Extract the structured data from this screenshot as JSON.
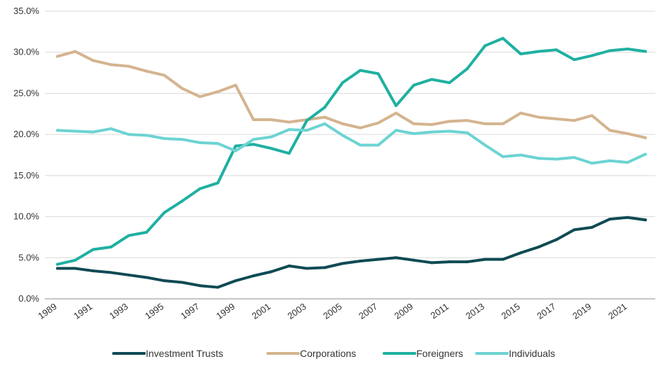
{
  "chart_data": {
    "type": "line",
    "title": "",
    "xlabel": "",
    "ylabel": "",
    "ylim": [
      0,
      35
    ],
    "y_ticks": [
      "0.0%",
      "5.0%",
      "10.0%",
      "15.0%",
      "20.0%",
      "25.0%",
      "30.0%",
      "35.0%"
    ],
    "x": [
      1989,
      1990,
      1991,
      1992,
      1993,
      1994,
      1995,
      1996,
      1997,
      1998,
      1999,
      2000,
      2001,
      2002,
      2003,
      2004,
      2005,
      2006,
      2007,
      2008,
      2009,
      2010,
      2011,
      2012,
      2013,
      2014,
      2015,
      2016,
      2017,
      2018,
      2019,
      2020,
      2021,
      2022
    ],
    "x_ticks": [
      "1989",
      "1991",
      "1993",
      "1995",
      "1997",
      "1999",
      "2001",
      "2003",
      "2005",
      "2007",
      "2009",
      "2011",
      "2013",
      "2015",
      "2017",
      "2019",
      "2021"
    ],
    "grid": "horizontal",
    "legend_position": "bottom",
    "series": [
      {
        "name": "Investment Trusts",
        "color": "#0f4a54",
        "values": [
          3.7,
          3.7,
          3.4,
          3.2,
          2.9,
          2.6,
          2.2,
          2.0,
          1.6,
          1.4,
          2.2,
          2.8,
          3.3,
          4.0,
          3.7,
          3.8,
          4.3,
          4.6,
          4.8,
          5.0,
          4.7,
          4.4,
          4.5,
          4.5,
          4.8,
          4.8,
          5.6,
          6.3,
          7.2,
          8.4,
          8.7,
          9.7,
          9.9,
          9.6
        ]
      },
      {
        "name": "Corporations",
        "color": "#d4b48f",
        "values": [
          29.5,
          30.1,
          29.0,
          28.5,
          28.3,
          27.7,
          27.2,
          25.6,
          24.6,
          25.2,
          26.0,
          21.8,
          21.8,
          21.5,
          21.8,
          22.1,
          21.3,
          20.8,
          21.4,
          22.6,
          21.3,
          21.2,
          21.6,
          21.7,
          21.3,
          21.3,
          22.6,
          22.1,
          21.9,
          21.7,
          22.3,
          20.5,
          20.1,
          19.6
        ]
      },
      {
        "name": "Foreigners",
        "color": "#1fb0a1",
        "values": [
          4.2,
          4.7,
          6.0,
          6.3,
          7.7,
          8.1,
          10.5,
          11.9,
          13.4,
          14.1,
          18.6,
          18.8,
          18.3,
          17.7,
          21.7,
          23.3,
          26.3,
          27.8,
          27.4,
          23.5,
          26.0,
          26.7,
          26.3,
          28.0,
          30.8,
          31.7,
          29.8,
          30.1,
          30.3,
          29.1,
          29.6,
          30.2,
          30.4,
          30.1
        ]
      },
      {
        "name": "Individuals",
        "color": "#6dd3d3",
        "values": [
          20.5,
          20.4,
          20.3,
          20.7,
          20.0,
          19.9,
          19.5,
          19.4,
          19.0,
          18.9,
          18.0,
          19.4,
          19.7,
          20.6,
          20.5,
          21.3,
          19.9,
          18.7,
          18.7,
          20.5,
          20.1,
          20.3,
          20.4,
          20.2,
          18.7,
          17.3,
          17.5,
          17.1,
          17.0,
          17.2,
          16.5,
          16.8,
          16.6,
          17.6
        ]
      }
    ],
    "axis_color": "#8c8c8c",
    "grid_color": "#d9d9d9"
  }
}
